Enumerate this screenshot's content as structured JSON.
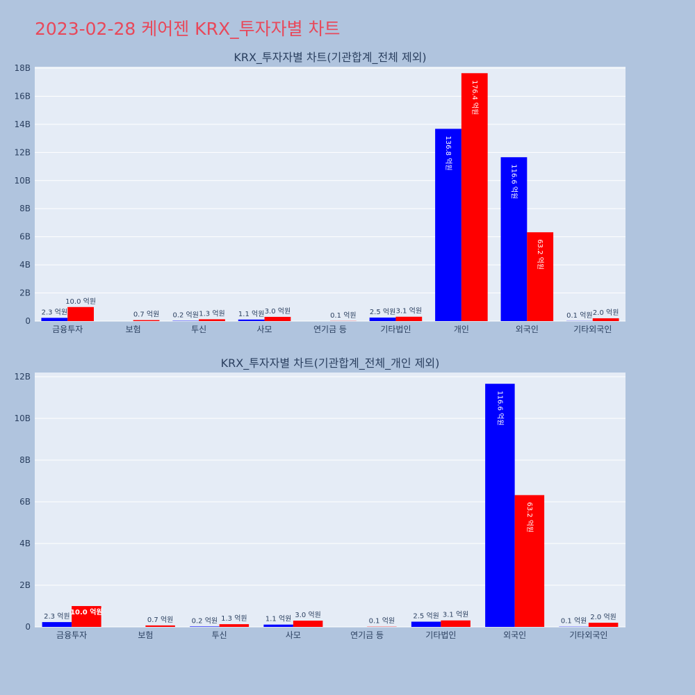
{
  "title": "2023-02-28 케어젠 KRX_투자자별 차트",
  "colors": {
    "series_a": "#0000ff",
    "series_b": "#ff0000",
    "plot_bg": "#e5ecf6",
    "page_bg": "#b0c4de",
    "title": "#e8485a"
  },
  "chart_data": [
    {
      "type": "bar",
      "title": "KRX_투자자별 차트(기관합계_전체 제외)",
      "categories": [
        "금융투자",
        "보험",
        "투신",
        "사모",
        "연기금 등",
        "기타법인",
        "개인",
        "외국인",
        "기타외국인"
      ],
      "series": [
        {
          "values": [
            0.23,
            0,
            0.02,
            0.11,
            0,
            0.25,
            13.68,
            11.66,
            0.01
          ],
          "labels": [
            "2.3 억원",
            "",
            "0.2 억원",
            "1.1 억원",
            "",
            "2.5 억원",
            "136.8 억원",
            "116.6 억원",
            "0.1 억원"
          ]
        },
        {
          "values": [
            1.0,
            0.07,
            0.13,
            0.3,
            0.01,
            0.31,
            17.64,
            6.32,
            0.2
          ],
          "labels": [
            "10.0 억원",
            "0.7 억원",
            "1.3 억원",
            "3.0 억원",
            "0.1 억원",
            "3.1 억원",
            "176.4 억원",
            "63.2 억원",
            "2.0 억원"
          ]
        }
      ],
      "ylim": [
        0,
        18.1
      ],
      "yticks": [
        0,
        2,
        4,
        6,
        8,
        10,
        12,
        14,
        16,
        18
      ],
      "ytick_labels": [
        "0",
        "2B",
        "4B",
        "6B",
        "8B",
        "10B",
        "12B",
        "14B",
        "16B",
        "18B"
      ],
      "grid": true,
      "legend": "none"
    },
    {
      "type": "bar",
      "title": "KRX_투자자별 차트(기관합계_전체_개인 제외)",
      "categories": [
        "금융투자",
        "보험",
        "투신",
        "사모",
        "연기금 등",
        "기타법인",
        "외국인",
        "기타외국인"
      ],
      "series": [
        {
          "values": [
            0.23,
            0,
            0.02,
            0.11,
            0,
            0.25,
            11.66,
            0.01
          ],
          "labels": [
            "2.3 억원",
            "",
            "0.2 억원",
            "1.1 억원",
            "",
            "2.5 억원",
            "116.6 억원",
            "0.1 억원"
          ]
        },
        {
          "values": [
            1.0,
            0.07,
            0.13,
            0.3,
            0.01,
            0.31,
            6.32,
            0.2
          ],
          "labels": [
            "10.0 억원",
            "0.7 억원",
            "1.3 억원",
            "3.0 억원",
            "0.1 억원",
            "3.1 억원",
            "63.2 억원",
            "2.0 억원"
          ]
        }
      ],
      "ylim": [
        0,
        12.2
      ],
      "yticks": [
        0,
        2,
        4,
        6,
        8,
        10,
        12
      ],
      "ytick_labels": [
        "0",
        "2B",
        "4B",
        "6B",
        "8B",
        "10B",
        "12B"
      ],
      "grid": true,
      "legend": "none"
    }
  ]
}
